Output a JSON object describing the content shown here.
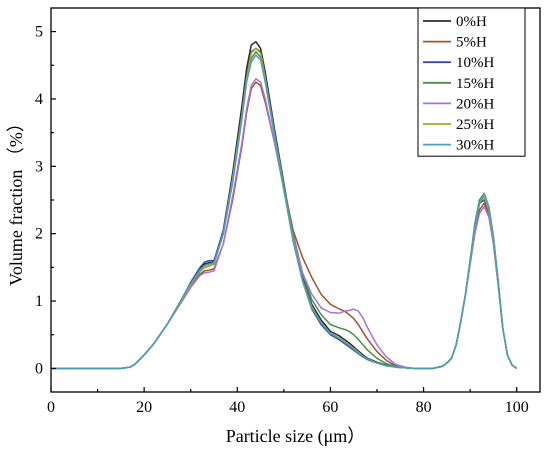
{
  "chart_data": {
    "type": "line",
    "title": "",
    "xlabel": "Particle size (μm）",
    "ylabel": "Volume fraction （%）",
    "xlim": [
      0,
      105
    ],
    "ylim": [
      -0.35,
      5.35
    ],
    "xticks": [
      0,
      20,
      40,
      60,
      80,
      100
    ],
    "yticks": [
      0,
      1,
      2,
      3,
      4,
      5
    ],
    "grid": false,
    "legend_position": "top-right",
    "x": [
      0,
      10,
      15,
      17,
      18,
      20,
      22,
      25,
      28,
      30,
      32,
      33,
      34,
      35,
      37,
      39,
      41,
      42,
      43,
      44,
      45,
      46,
      48,
      50,
      52,
      54,
      56,
      58,
      60,
      62,
      63,
      64,
      65,
      66,
      67,
      68,
      70,
      72,
      74,
      76,
      78,
      80,
      82,
      84,
      85,
      86,
      87,
      88,
      89,
      90,
      91,
      92,
      93,
      94,
      95,
      96,
      97,
      98,
      99,
      100
    ],
    "series": [
      {
        "name": "0%H",
        "color": "#2b2b2b",
        "values": [
          0,
          0,
          0,
          0.02,
          0.06,
          0.2,
          0.36,
          0.66,
          1.02,
          1.26,
          1.48,
          1.55,
          1.57,
          1.58,
          2.05,
          2.9,
          3.9,
          4.45,
          4.8,
          4.85,
          4.75,
          4.4,
          3.55,
          2.75,
          1.95,
          1.35,
          0.95,
          0.72,
          0.55,
          0.48,
          0.43,
          0.38,
          0.32,
          0.26,
          0.2,
          0.15,
          0.09,
          0.05,
          0.02,
          0.01,
          0,
          0,
          0,
          0.03,
          0.08,
          0.15,
          0.35,
          0.7,
          1.1,
          1.6,
          2.1,
          2.45,
          2.55,
          2.4,
          1.95,
          1.3,
          0.6,
          0.2,
          0.05,
          0
        ]
      },
      {
        "name": "5%H",
        "color": "#a0522d",
        "values": [
          0,
          0,
          0,
          0.02,
          0.06,
          0.2,
          0.36,
          0.66,
          1.0,
          1.22,
          1.4,
          1.45,
          1.46,
          1.48,
          1.85,
          2.5,
          3.3,
          3.8,
          4.15,
          4.25,
          4.2,
          3.95,
          3.35,
          2.7,
          2.05,
          1.65,
          1.35,
          1.1,
          0.95,
          0.88,
          0.85,
          0.8,
          0.74,
          0.65,
          0.54,
          0.43,
          0.25,
          0.12,
          0.04,
          0.01,
          0,
          0,
          0,
          0.03,
          0.08,
          0.15,
          0.35,
          0.7,
          1.1,
          1.55,
          2.0,
          2.35,
          2.45,
          2.3,
          1.85,
          1.25,
          0.6,
          0.2,
          0.05,
          0
        ]
      },
      {
        "name": "10%H",
        "color": "#3b4aa8",
        "values": [
          0,
          0,
          0,
          0.02,
          0.06,
          0.2,
          0.36,
          0.66,
          1.02,
          1.28,
          1.5,
          1.58,
          1.6,
          1.6,
          2.05,
          2.85,
          3.8,
          4.35,
          4.7,
          4.75,
          4.7,
          4.35,
          3.5,
          2.7,
          1.9,
          1.3,
          0.88,
          0.65,
          0.5,
          0.42,
          0.37,
          0.32,
          0.27,
          0.22,
          0.17,
          0.13,
          0.08,
          0.04,
          0.02,
          0.01,
          0,
          0,
          0,
          0.03,
          0.08,
          0.15,
          0.35,
          0.7,
          1.1,
          1.6,
          2.1,
          2.45,
          2.5,
          2.35,
          1.9,
          1.3,
          0.6,
          0.2,
          0.05,
          0
        ]
      },
      {
        "name": "15%H",
        "color": "#4c8f4c",
        "values": [
          0,
          0,
          0,
          0.02,
          0.06,
          0.2,
          0.36,
          0.66,
          1.0,
          1.24,
          1.44,
          1.5,
          1.52,
          1.55,
          2.0,
          2.8,
          3.75,
          4.3,
          4.6,
          4.7,
          4.62,
          4.3,
          3.5,
          2.72,
          2.0,
          1.42,
          1.02,
          0.8,
          0.65,
          0.6,
          0.58,
          0.55,
          0.5,
          0.43,
          0.35,
          0.27,
          0.15,
          0.07,
          0.03,
          0.01,
          0,
          0,
          0,
          0.03,
          0.08,
          0.15,
          0.35,
          0.7,
          1.1,
          1.6,
          2.15,
          2.5,
          2.6,
          2.4,
          1.95,
          1.3,
          0.6,
          0.2,
          0.05,
          0
        ]
      },
      {
        "name": "20%H",
        "color": "#a873d8",
        "values": [
          0,
          0,
          0,
          0.02,
          0.06,
          0.2,
          0.36,
          0.66,
          0.98,
          1.2,
          1.38,
          1.42,
          1.43,
          1.45,
          1.85,
          2.55,
          3.35,
          3.85,
          4.2,
          4.3,
          4.25,
          4.0,
          3.35,
          2.65,
          1.95,
          1.42,
          1.1,
          0.9,
          0.83,
          0.82,
          0.85,
          0.86,
          0.88,
          0.85,
          0.75,
          0.6,
          0.35,
          0.17,
          0.06,
          0.02,
          0,
          0,
          0,
          0.03,
          0.08,
          0.15,
          0.35,
          0.7,
          1.1,
          1.55,
          2.0,
          2.3,
          2.4,
          2.25,
          1.85,
          1.25,
          0.6,
          0.2,
          0.05,
          0
        ]
      },
      {
        "name": "25%H",
        "color": "#a8a820",
        "values": [
          0,
          0,
          0,
          0.02,
          0.06,
          0.2,
          0.36,
          0.66,
          1.0,
          1.24,
          1.44,
          1.5,
          1.52,
          1.55,
          2.0,
          2.8,
          3.75,
          4.3,
          4.68,
          4.75,
          4.68,
          4.3,
          3.45,
          2.65,
          1.88,
          1.3,
          0.9,
          0.68,
          0.52,
          0.45,
          0.4,
          0.35,
          0.3,
          0.24,
          0.18,
          0.14,
          0.08,
          0.04,
          0.02,
          0.01,
          0,
          0,
          0,
          0.03,
          0.08,
          0.15,
          0.35,
          0.7,
          1.1,
          1.6,
          2.1,
          2.45,
          2.55,
          2.35,
          1.9,
          1.3,
          0.6,
          0.2,
          0.05,
          0
        ]
      },
      {
        "name": "30%H",
        "color": "#4aa0b8",
        "values": [
          0,
          0,
          0,
          0.02,
          0.06,
          0.2,
          0.36,
          0.66,
          1.02,
          1.26,
          1.46,
          1.53,
          1.55,
          1.57,
          2.0,
          2.75,
          3.7,
          4.25,
          4.55,
          4.65,
          4.58,
          4.25,
          3.45,
          2.65,
          1.9,
          1.32,
          0.92,
          0.68,
          0.52,
          0.44,
          0.39,
          0.34,
          0.29,
          0.23,
          0.18,
          0.14,
          0.08,
          0.04,
          0.02,
          0.01,
          0,
          0,
          0,
          0.03,
          0.08,
          0.15,
          0.35,
          0.7,
          1.1,
          1.6,
          2.1,
          2.45,
          2.6,
          2.4,
          1.95,
          1.3,
          0.6,
          0.2,
          0.05,
          0
        ]
      }
    ]
  }
}
